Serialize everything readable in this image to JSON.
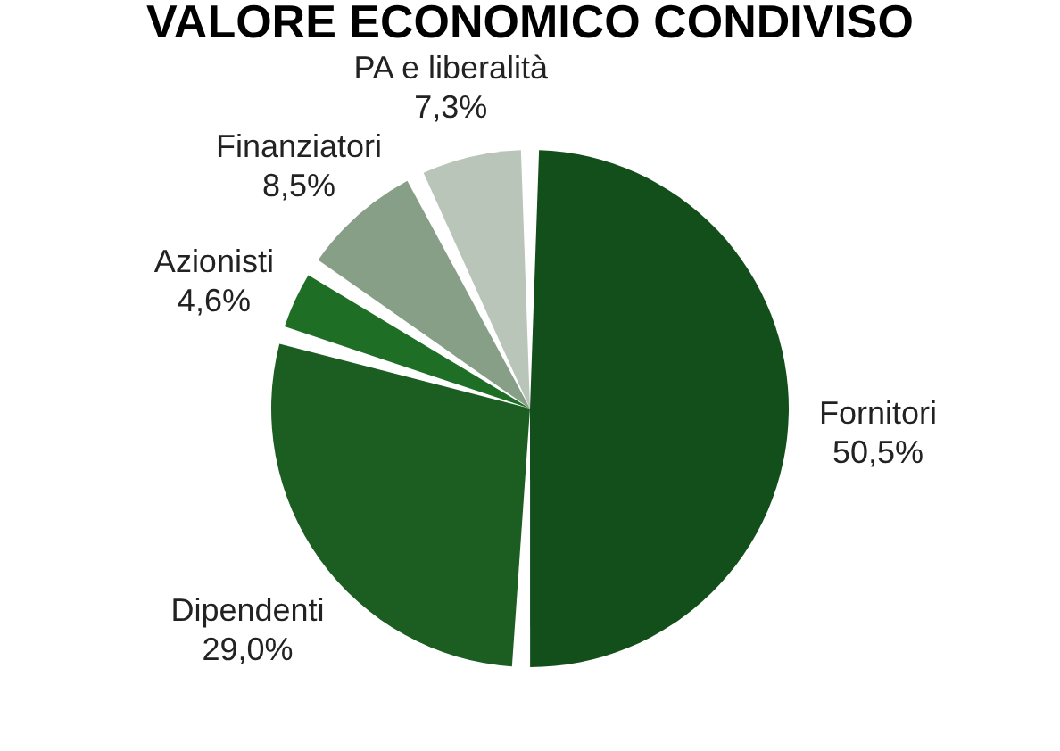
{
  "chart_data": {
    "type": "pie",
    "title": "VALORE ECONOMICO CONDIVISO",
    "categories": [
      "Fornitori",
      "Dipendenti",
      "Azionisti",
      "Finanziatori",
      "PA e liberalità"
    ],
    "values": [
      50.5,
      29.0,
      4.6,
      8.5,
      7.3
    ],
    "value_labels": [
      "50,5%",
      "29,0%",
      "4,6%",
      "8,5%",
      "7,3%"
    ],
    "colors": [
      "#134f1a",
      "#1c5e22",
      "#1e6e26",
      "#879e87",
      "#b9c5b9"
    ],
    "legend": false
  }
}
